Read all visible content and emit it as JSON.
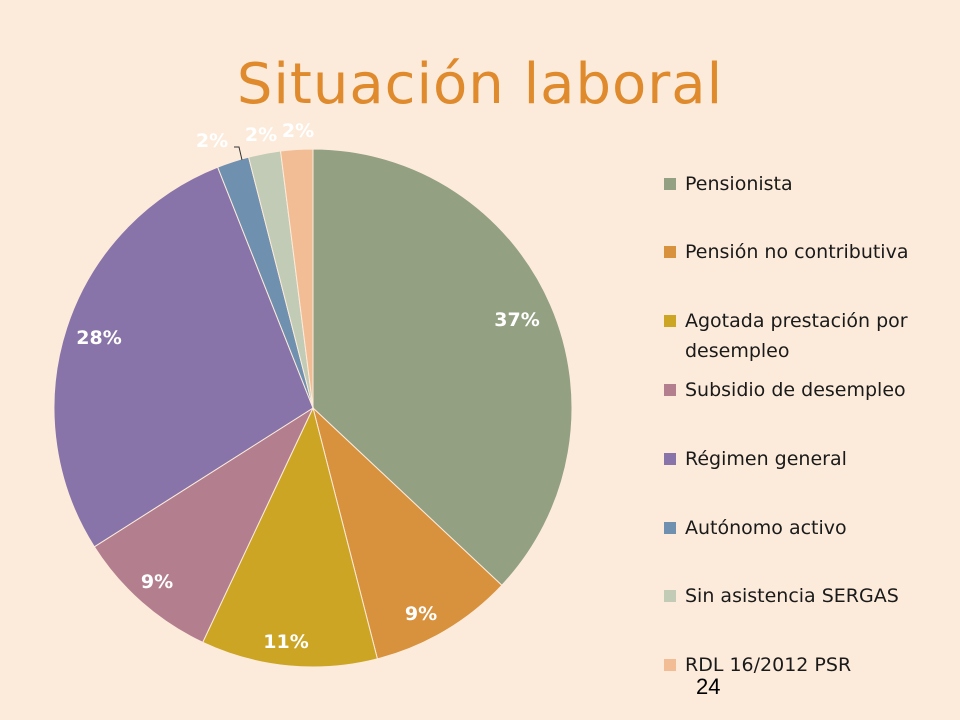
{
  "slide": {
    "title": "Situación laboral",
    "page_number": "24"
  },
  "chart_data": {
    "type": "pie",
    "title": "Situación laboral",
    "legend_position": "right",
    "start_angle_deg": 0,
    "direction": "clockwise",
    "slices": [
      {
        "label": "Pensionista",
        "value": 37,
        "display": "37%",
        "color": "#93a082"
      },
      {
        "label": "Pensión no contributiva",
        "value": 9,
        "display": "9%",
        "color": "#d8913d"
      },
      {
        "label": "Agotada prestación por desempleo",
        "value": 11,
        "display": "11%",
        "color": "#cca524"
      },
      {
        "label": "Subsidio de desempleo",
        "value": 9,
        "display": "9%",
        "color": "#b37f8f"
      },
      {
        "label": "Régimen general",
        "value": 28,
        "display": "28%",
        "color": "#8874a8"
      },
      {
        "label": "Autónomo activo",
        "value": 2,
        "display": "2%",
        "color": "#7090b0"
      },
      {
        "label": "Sin asistencia SERGAS",
        "value": 2,
        "display": "2%",
        "color": "#c2cbb5"
      },
      {
        "label": "RDL 16/2012 PSR",
        "value": 2,
        "display": "2%",
        "color": "#f2bd94"
      }
    ]
  },
  "legend": {
    "items": [
      {
        "lines": [
          "Pensionista"
        ]
      },
      {
        "lines": [
          "Pensión no contributiva"
        ]
      },
      {
        "lines": [
          "Agotada prestación por",
          "desempleo"
        ]
      },
      {
        "lines": [
          "Subsidio de desempleo"
        ]
      },
      {
        "lines": [
          "Régimen general"
        ]
      },
      {
        "lines": [
          "Autónomo activo"
        ]
      },
      {
        "lines": [
          "Sin asistencia SERGAS"
        ]
      },
      {
        "lines": [
          "RDL 16/2012 PSR"
        ]
      }
    ]
  }
}
